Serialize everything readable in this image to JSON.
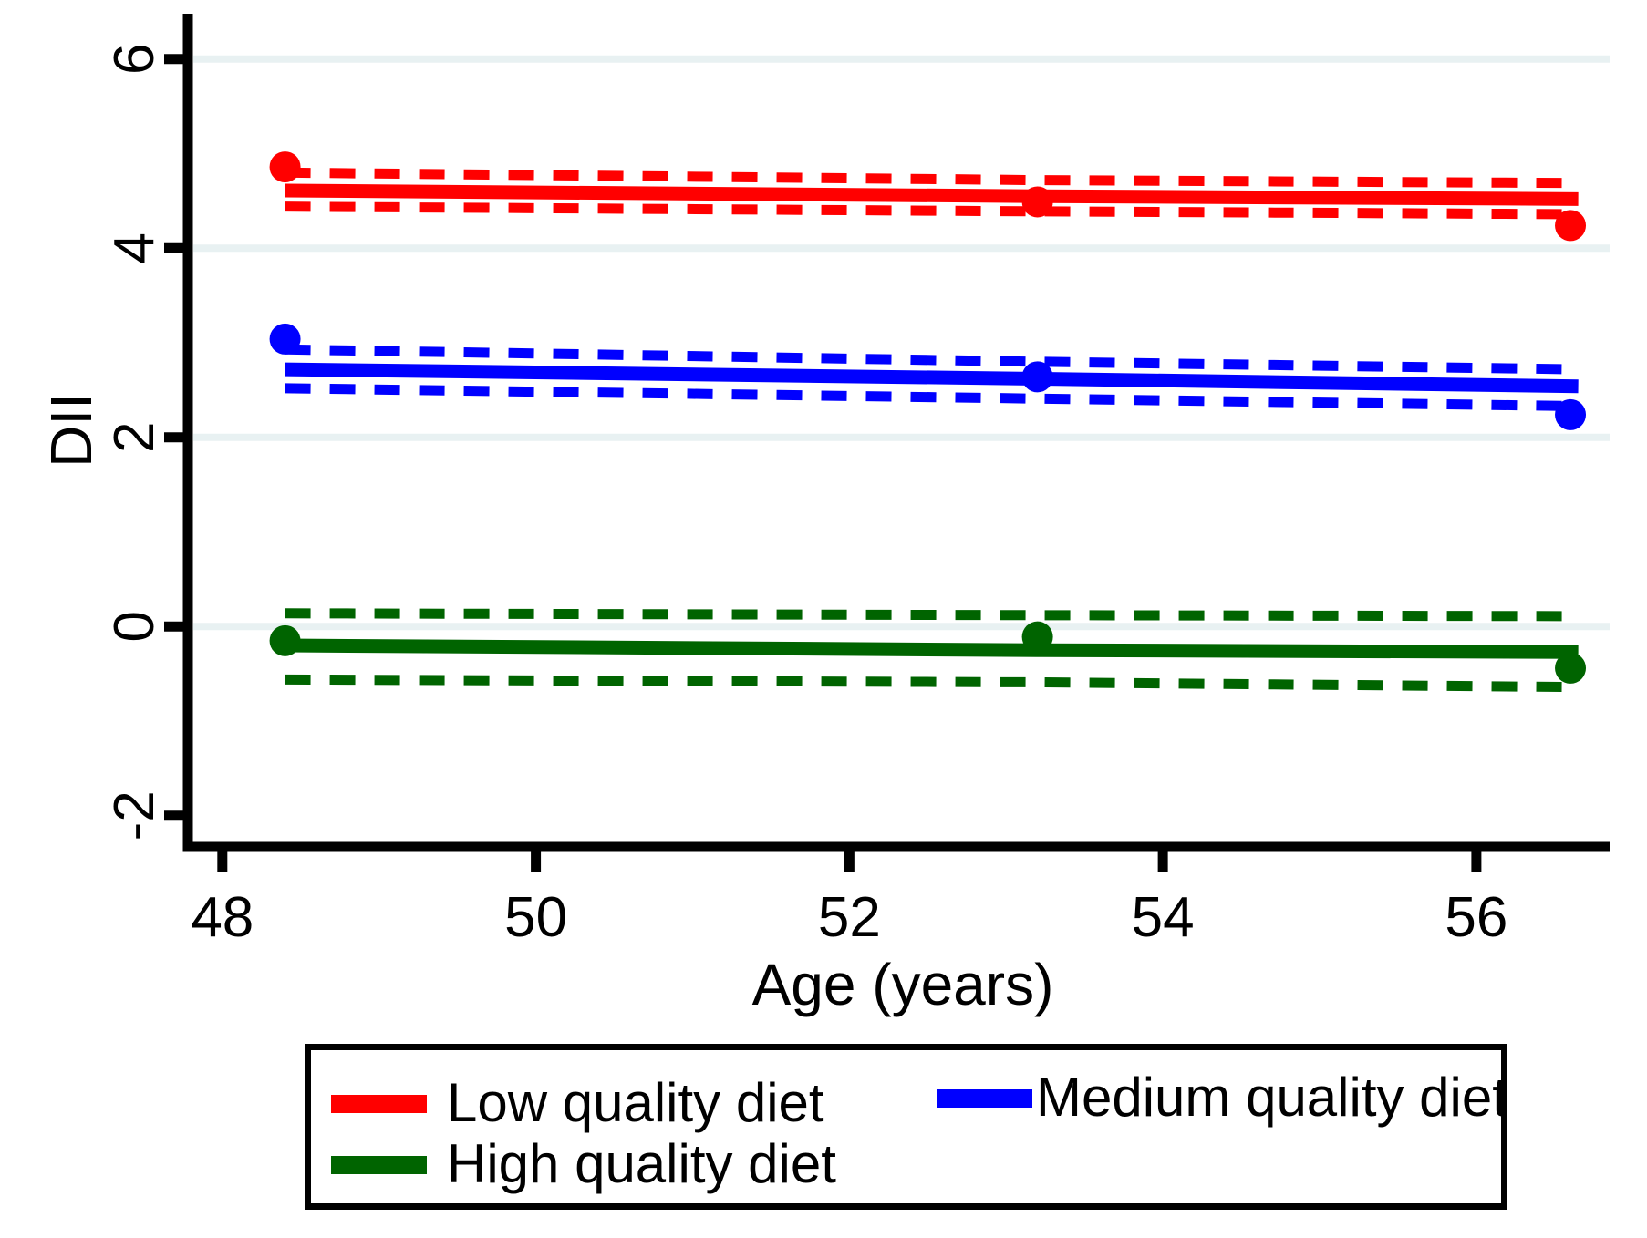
{
  "figure": {
    "background": "#ffffff"
  },
  "chart_data": {
    "type": "line",
    "title": "",
    "xlabel": "Age (years)",
    "ylabel": "DII",
    "xlim": [
      47.78,
      56.85
    ],
    "ylim": [
      -2.33,
      6.48
    ],
    "xticks": [
      48,
      50,
      52,
      54,
      56
    ],
    "yticks": [
      -2,
      0,
      2,
      4,
      6
    ],
    "grid_yticks": [
      0,
      2,
      4,
      6
    ],
    "grid_on": true,
    "grid_color": "#e8f1f2",
    "axis_color": "#000000",
    "legend_position": "bottom",
    "series": [
      {
        "name": "Low quality diet",
        "color": "#ff0000",
        "line_x": [
          48.4,
          53.2,
          56.65
        ],
        "line_y": [
          4.61,
          4.55,
          4.52
        ],
        "ci_upper": [
          4.8,
          4.72,
          4.69
        ],
        "ci_lower": [
          4.44,
          4.39,
          4.36
        ],
        "points": [
          [
            48.4,
            4.86
          ],
          [
            53.2,
            4.49
          ],
          [
            56.6,
            4.24
          ]
        ]
      },
      {
        "name": "Medium quality diet",
        "color": "#0000ff",
        "line_x": [
          48.4,
          53.2,
          56.65
        ],
        "line_y": [
          2.72,
          2.62,
          2.54
        ],
        "ci_upper": [
          2.93,
          2.8,
          2.72
        ],
        "ci_lower": [
          2.52,
          2.41,
          2.33
        ],
        "points": [
          [
            48.4,
            3.04
          ],
          [
            53.2,
            2.64
          ],
          [
            56.6,
            2.24
          ]
        ]
      },
      {
        "name": "High quality diet",
        "color": "#006400",
        "line_x": [
          48.4,
          53.2,
          56.65
        ],
        "line_y": [
          -0.2,
          -0.25,
          -0.27
        ],
        "ci_upper": [
          0.14,
          0.12,
          0.11
        ],
        "ci_lower": [
          -0.56,
          -0.59,
          -0.64
        ],
        "points": [
          [
            48.4,
            -0.15
          ],
          [
            53.2,
            -0.11
          ],
          [
            56.6,
            -0.44
          ]
        ]
      }
    ]
  }
}
